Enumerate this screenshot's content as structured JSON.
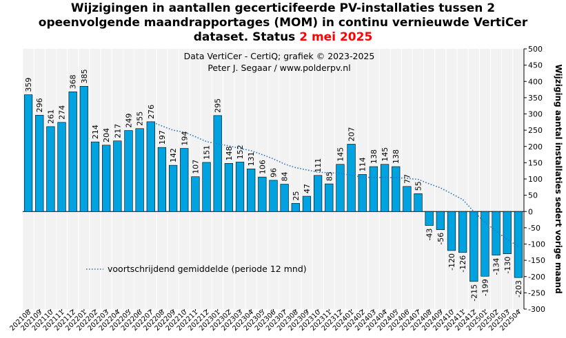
{
  "title": {
    "line1": "Wijzigingen in aantallen gecerticifeerde PV-installaties tussen 2",
    "line2": "opeenvolgende maandrapportages (MOM) in continu vernieuwde VertiCer",
    "line3_prefix": "dataset. Status ",
    "line3_accent": "2 mei 2025"
  },
  "credit": {
    "line1": "Data VertiCer - CertiQ; grafiek © 2023-2025",
    "line2": "Peter J. Segaar / www.polderpv.nl"
  },
  "colors": {
    "bar": "#00a3e0",
    "bar_edge": "#000000",
    "moving_avg": "#2e75c9",
    "plot_bg": "#f2f2f2",
    "accent": "#ff0000"
  },
  "chart_data": {
    "type": "bar",
    "title": "Wijzigingen in aantallen gecerticifeerde PV-installaties tussen 2 opeenvolgende maandrapportages (MOM) in continu vernieuwde VertiCer dataset. Status 2 mei 2025",
    "ylabel": "Wijziging aantal installaties sedert vorige maand",
    "xlabel": "",
    "ylim": [
      -300,
      500
    ],
    "yticks": [
      -300,
      -250,
      -200,
      -150,
      -100,
      -50,
      0,
      50,
      100,
      150,
      200,
      250,
      300,
      350,
      400,
      450,
      500
    ],
    "y_axis_position": "right",
    "grid": "vertical",
    "legend_position": "bottom-left",
    "categories": [
      "202108",
      "202109",
      "202110",
      "202111",
      "202112",
      "202201",
      "202202",
      "202203",
      "202204",
      "202205",
      "202206",
      "202207",
      "202208",
      "202209",
      "202210",
      "202211",
      "202212",
      "202301",
      "202302",
      "202303",
      "202304",
      "202305",
      "202306",
      "202307",
      "202308",
      "202309",
      "202310",
      "202311",
      "202312",
      "202401",
      "202402",
      "202403",
      "202404",
      "202405",
      "202406",
      "202407",
      "202408",
      "202409",
      "202410",
      "202411",
      "202412",
      "202501",
      "202502",
      "202503",
      "202504"
    ],
    "series": [
      {
        "type": "bar",
        "values": [
          359,
          296,
          261,
          274,
          368,
          385,
          214,
          204,
          217,
          249,
          255,
          276,
          197,
          142,
          194,
          107,
          151,
          295,
          148,
          152,
          131,
          106,
          96,
          84,
          25,
          47,
          111,
          85,
          145,
          207,
          114,
          138,
          145,
          138,
          77,
          55,
          -43,
          -56,
          -120,
          -126,
          -215,
          -199,
          -134,
          -130,
          -203
        ]
      },
      {
        "type": "line",
        "style": "dotted",
        "name": "voortschrijdend gemiddelde  (periode 12 mnd)",
        "values": [
          null,
          null,
          null,
          null,
          null,
          null,
          null,
          null,
          null,
          null,
          null,
          277,
          263,
          250,
          244,
          230,
          215,
          208,
          202,
          194,
          187,
          175,
          162,
          146,
          135,
          128,
          121,
          119,
          118,
          111,
          106,
          104,
          105,
          104,
          102,
          99,
          85,
          73,
          55,
          37,
          0,
          -34,
          -60,
          -86,
          -107
        ]
      }
    ]
  }
}
